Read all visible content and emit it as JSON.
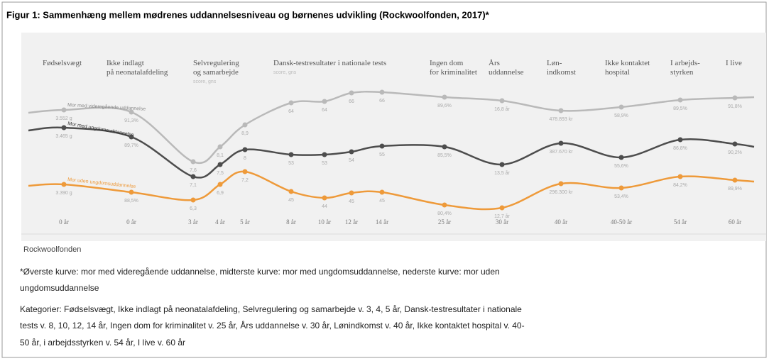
{
  "figure": {
    "title": "Figur 1: Sammenhæng mellem mødrenes uddannelsesniveau og børnenes udvikling (Rockwoolfonden, 2017)*",
    "headers": [
      {
        "lines": [
          "Fødselsvægt"
        ]
      },
      {
        "lines": [
          "Ikke indlagt",
          "på neonatalafdeling"
        ]
      },
      {
        "lines": [
          "Selvregulering",
          "og samarbejde"
        ],
        "sub": "score, gns"
      },
      {
        "lines": [
          "Dansk-testresultater i nationale tests"
        ],
        "sub": "score, gns"
      },
      {
        "lines": [
          "Ingen dom",
          "for kriminalitet"
        ]
      },
      {
        "lines": [
          "Års",
          "uddannelse"
        ]
      },
      {
        "lines": [
          "Løn-",
          "indkomst"
        ]
      },
      {
        "lines": [
          "Ikke kontaktet",
          "hospital"
        ]
      },
      {
        "lines": [
          "I arbejds-",
          "styrken"
        ]
      },
      {
        "lines": [
          "I live"
        ]
      }
    ],
    "ages": [
      "0 år",
      "0 år",
      "3 år",
      "4 år",
      "5 år",
      "8 år",
      "10 år",
      "12 år",
      "14 år",
      "25 år",
      "30 år",
      "40 år",
      "40-50 år",
      "54 år",
      "60 år"
    ],
    "curves": [
      {
        "name": "Mor med videregående uddannelse",
        "color": "#b9b9b9",
        "labels": [
          "3.552 g",
          "91,3%",
          "7,6",
          "8,1",
          "8,9",
          "64",
          "64",
          "66",
          "66",
          "89,6%",
          "16,8 år",
          "478.893 kr",
          "58,9%",
          "89,5%",
          "91,8%"
        ]
      },
      {
        "name": "Mor med ungdomsuddannelse",
        "color": "#4d4d4d",
        "labels": [
          "3.465 g",
          "89,7%",
          "7,1",
          "7,5",
          "8",
          "53",
          "53",
          "54",
          "55",
          "85,5%",
          "13,5 år",
          "387.670 kr",
          "55,6%",
          "86,8%",
          "90,2%"
        ]
      },
      {
        "name": "Mor uden ungdomsuddannelse",
        "color": "#ee9a3a",
        "labels": [
          "3.390 g",
          "88,5%",
          "6,3",
          "6,9",
          "7,2",
          "45",
          "44",
          "45",
          "45",
          "80,4%",
          "12,7 år",
          "296.300 kr",
          "53,4%",
          "84,2%",
          "89,9%"
        ]
      }
    ],
    "source": "Rockwoolfonden",
    "notes": [
      "*Øverste kurve: mor med videregående uddannelse, midterste kurve: mor med ungdomsuddannelse, nederste kurve: mor uden",
      "ungdomsuddannelse",
      "Kategorier: Fødselsvægt, Ikke indlagt på neonatalafdeling, Selvregulering og samarbejde v. 3, 4, 5 år, Dansk-testresultater i nationale",
      "tests v. 8, 10, 12, 14 år, Ingen dom for kriminalitet v. 25 år, Års uddannelse v. 30 år, Lønindkomst v. 40 år, Ikke kontaktet hospital v. 40-",
      "50 år, i arbejdsstyrken v. 54 år, I live v. 60 år"
    ]
  }
}
